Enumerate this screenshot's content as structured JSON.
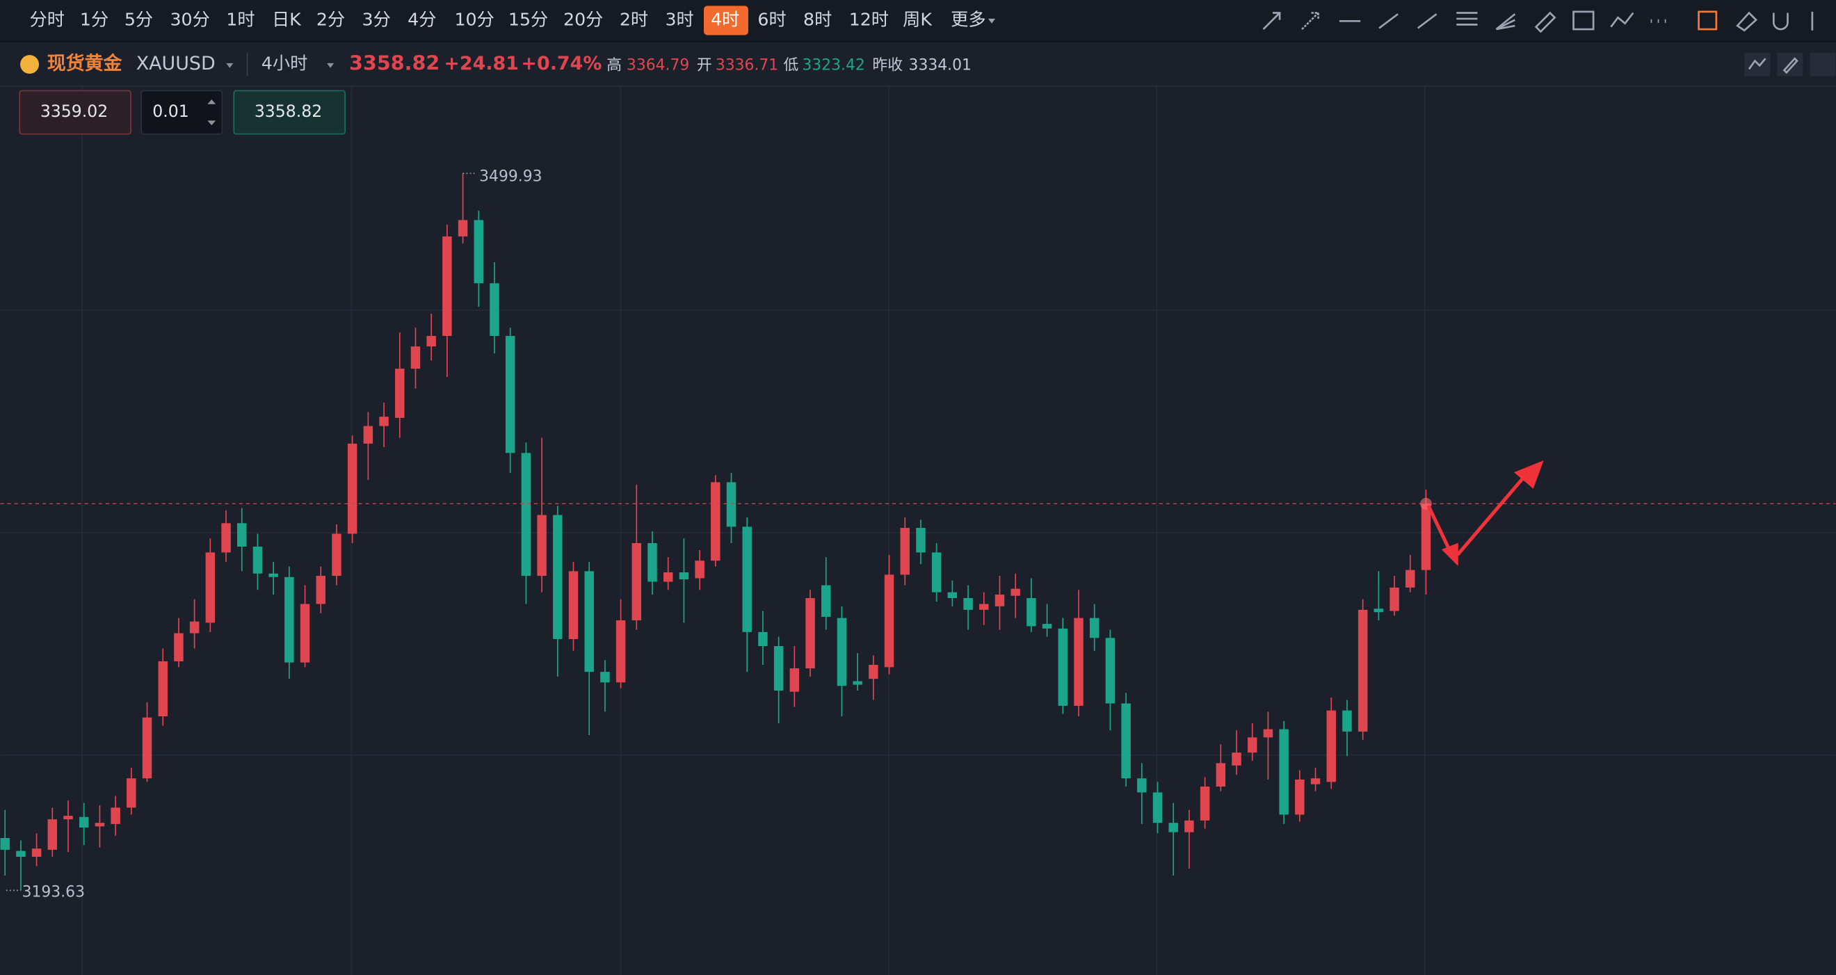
{
  "toolbar": {
    "periods": [
      "分时",
      "1分",
      "5分",
      "30分",
      "1时",
      "日K",
      "2分",
      "3分",
      "4分",
      "10分",
      "15分",
      "20分",
      "2时",
      "3时",
      "4时",
      "6时",
      "8时",
      "12时",
      "周K",
      "更多"
    ],
    "active_index": 14
  },
  "quote": {
    "name": "现货黄金",
    "symbol": "XAUUSD",
    "interval": "4小时",
    "price": "3358.82",
    "change": "+24.81",
    "change_pct": "+0.74%",
    "high_label": "高",
    "high": "3364.79",
    "open_label": "开",
    "open": "3336.71",
    "low_label": "低",
    "low": "3323.42",
    "prev_label": "昨收",
    "prev": "3334.01"
  },
  "order": {
    "buy": "3359.02",
    "qty": "0.01",
    "sell": "3358.82"
  },
  "chart_data": {
    "type": "candlestick",
    "ylim": [
      3157.5,
      3536.5
    ],
    "up_color": "#e0464f",
    "down_color": "#1ba58b",
    "open": [
      3216,
      3210.5,
      3208,
      3211,
      3224,
      3225,
      3221,
      3222,
      3229,
      3241.5,
      3268,
      3291.5,
      3303.5,
      3308,
      3338,
      3350.5,
      3340.5,
      3329,
      3327.5,
      3291,
      3316,
      3328,
      3346,
      3384.5,
      3392,
      3395.5,
      3416.5,
      3426,
      3430.5,
      3473,
      3480,
      3453,
      3430.5,
      3380.5,
      3328,
      3354,
      3301,
      3330,
      3287,
      3282.5,
      3309,
      3342,
      3325.5,
      3329.5,
      3327,
      3334.5,
      3368,
      3349,
      3304,
      3298,
      3278.5,
      3288.5,
      3324,
      3310,
      3283,
      3284,
      3289,
      3328.5,
      3348.5,
      3338,
      3321,
      3318.5,
      3313.5,
      3315,
      3319.5,
      3318.5,
      3307.5,
      3305.5,
      3272.5,
      3310,
      3301.5,
      3273.5,
      3241.5,
      3235.5,
      3222.5,
      3218.5,
      3223.5,
      3238,
      3247,
      3252.5,
      3259,
      3262.5,
      3226,
      3239,
      3240,
      3270.5,
      3261.5,
      3314,
      3313,
      3323,
      3330.5
    ],
    "high": [
      3228,
      3215,
      3218,
      3229,
      3232,
      3231,
      3230,
      3234,
      3246,
      3274,
      3297,
      3310,
      3318,
      3344,
      3356,
      3357,
      3346,
      3334,
      3332,
      3324,
      3332,
      3350,
      3388,
      3398,
      3402,
      3432,
      3434,
      3440,
      3478,
      3499.93,
      3484,
      3462,
      3434,
      3385,
      3387,
      3358,
      3334,
      3334,
      3292,
      3318,
      3367,
      3347,
      3336,
      3344,
      3339,
      3371,
      3372,
      3353,
      3313,
      3302,
      3298,
      3322,
      3336,
      3315,
      3295,
      3294,
      3337,
      3353,
      3352,
      3342,
      3326,
      3324,
      3321,
      3328,
      3329,
      3327,
      3316,
      3310,
      3322,
      3316,
      3305,
      3278,
      3248,
      3240,
      3231,
      3228,
      3242,
      3256,
      3262,
      3265,
      3270,
      3266,
      3245,
      3246,
      3276,
      3275,
      3318,
      3330,
      3328,
      3337,
      3364.79
    ],
    "low": [
      3200,
      3193.63,
      3204,
      3208,
      3210,
      3213,
      3212,
      3217,
      3226,
      3240,
      3264,
      3289,
      3297,
      3304,
      3334,
      3330,
      3322,
      3320,
      3284,
      3289,
      3312,
      3324,
      3342,
      3369,
      3383,
      3387,
      3408,
      3420,
      3413,
      3470,
      3443,
      3423,
      3372,
      3316,
      3321,
      3285,
      3296,
      3260,
      3270,
      3280,
      3305,
      3320,
      3322,
      3308,
      3322,
      3332,
      3342,
      3287,
      3290,
      3265,
      3272,
      3285,
      3305,
      3268,
      3279,
      3275,
      3286,
      3324,
      3333,
      3317,
      3315,
      3305,
      3307,
      3305,
      3310,
      3304,
      3302,
      3269,
      3268,
      3296,
      3262,
      3238,
      3222,
      3218,
      3200,
      3203,
      3220,
      3236,
      3243,
      3249,
      3241,
      3222,
      3223,
      3236,
      3237,
      3251,
      3258,
      3309,
      3311,
      3321,
      3320
    ],
    "close": [
      3211,
      3208,
      3211.5,
      3224,
      3225.5,
      3220.5,
      3222.5,
      3229,
      3241.5,
      3267.5,
      3291.5,
      3303.5,
      3308.5,
      3338,
      3350.5,
      3340.5,
      3329,
      3327.5,
      3291,
      3316,
      3328,
      3346,
      3384.5,
      3392,
      3396,
      3416.5,
      3426,
      3430.5,
      3473,
      3480,
      3453,
      3430.5,
      3380.5,
      3328,
      3354,
      3301,
      3330,
      3287,
      3282.5,
      3309,
      3342,
      3325.5,
      3329.5,
      3326.5,
      3334.5,
      3368,
      3349,
      3304,
      3298,
      3279,
      3288.5,
      3318.5,
      3310.5,
      3281,
      3281.5,
      3290,
      3328.5,
      3348.5,
      3338,
      3321,
      3318.5,
      3313.5,
      3316,
      3320,
      3322.5,
      3306.5,
      3305.5,
      3272.5,
      3310,
      3301.5,
      3273.5,
      3241.5,
      3235.5,
      3222.5,
      3218.5,
      3223.5,
      3238,
      3248,
      3252.5,
      3259,
      3262.5,
      3226,
      3241,
      3241.5,
      3270.5,
      3261.5,
      3313.5,
      3312.5,
      3323,
      3330.5,
      3358.82
    ],
    "max_index": 29,
    "min_index": 1
  }
}
